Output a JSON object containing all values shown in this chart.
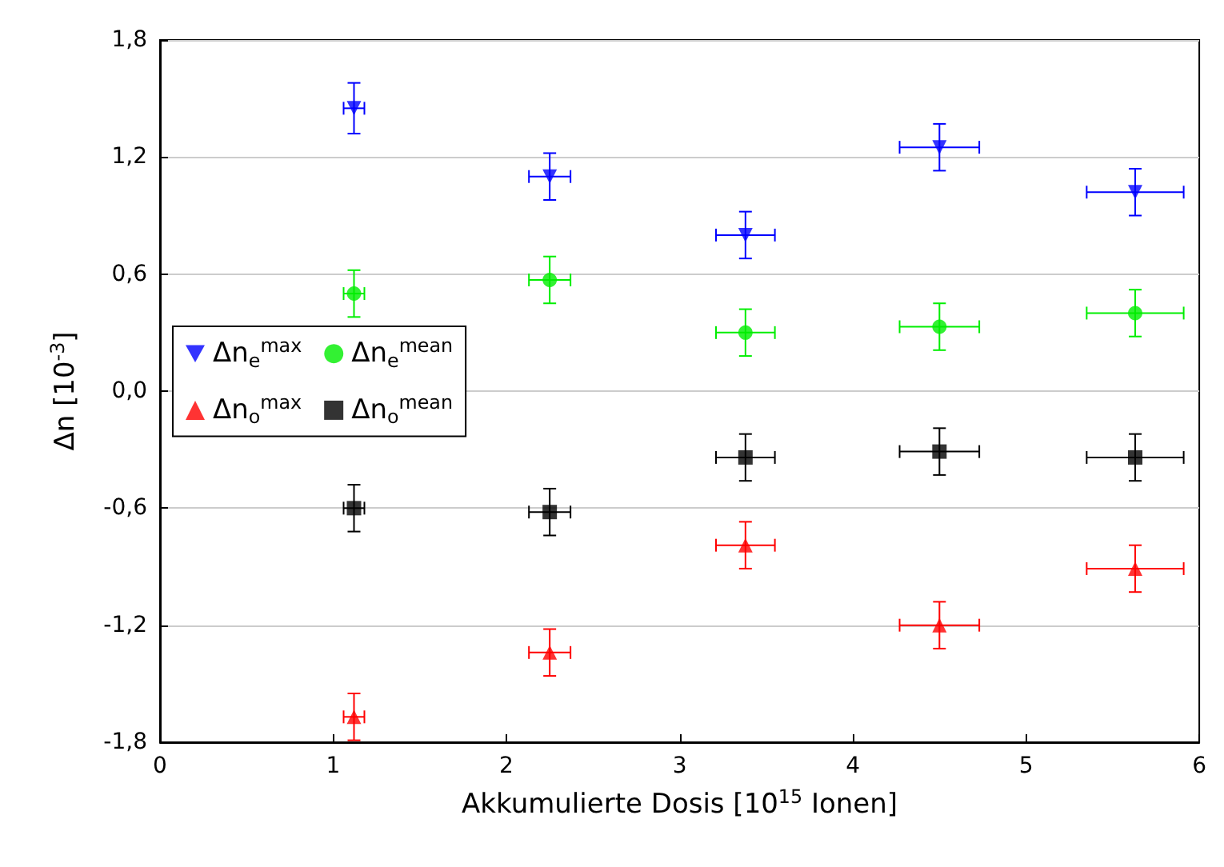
{
  "chart_data": {
    "type": "scatter",
    "xlabel": "Akkumulierte Dosis [10$^{15}$ Ionen]",
    "ylabel": "Δn [10$^{-3}$]",
    "x": [
      1.12,
      2.25,
      3.38,
      4.5,
      5.63
    ],
    "series": [
      {
        "name": "Δn$_{e}$$^{max}$",
        "color": "#0000ff",
        "marker": "triangle-down",
        "values": [
          1.45,
          1.1,
          0.8,
          1.25,
          1.02
        ],
        "errors": [
          0.13,
          0.12,
          0.12,
          0.12,
          0.12
        ],
        "xerrors": [
          0.06,
          0.12,
          0.17,
          0.23,
          0.28
        ]
      },
      {
        "name": "Δn$_{e}$$^{mean}$",
        "color": "#00ee00",
        "marker": "circle",
        "values": [
          0.5,
          0.57,
          0.3,
          0.33,
          0.4
        ],
        "errors": [
          0.12,
          0.12,
          0.12,
          0.12,
          0.12
        ],
        "xerrors": [
          0.06,
          0.12,
          0.17,
          0.23,
          0.28
        ]
      },
      {
        "name": "Δn$_{o}$$^{max}$",
        "color": "#ff0000",
        "marker": "triangle",
        "values": [
          -1.67,
          -1.34,
          -0.79,
          -1.2,
          -0.91
        ],
        "errors": [
          0.12,
          0.12,
          0.12,
          0.12,
          0.12
        ],
        "xerrors": [
          0.06,
          0.12,
          0.17,
          0.23,
          0.28
        ]
      },
      {
        "name": "Δn$_{o}$$^{mean}$",
        "color": "#000000",
        "marker": "square",
        "values": [
          -0.6,
          -0.62,
          -0.34,
          -0.31,
          -0.34
        ],
        "errors": [
          0.12,
          0.12,
          0.12,
          0.12,
          0.12
        ],
        "xerrors": [
          0.06,
          0.12,
          0.17,
          0.23,
          0.28
        ]
      }
    ],
    "xlim": [
      0,
      6
    ],
    "xticks": [
      0,
      1,
      2,
      3,
      4,
      5,
      6
    ],
    "ylim": [
      -1.8,
      1.8
    ],
    "yticks": [
      {
        "value": -1.8,
        "label": "-1,8"
      },
      {
        "value": -1.2,
        "label": "-1,2"
      },
      {
        "value": -0.6,
        "label": "-0,6"
      },
      {
        "value": 0,
        "label": "0,0"
      },
      {
        "value": 0.6,
        "label": "0,6"
      },
      {
        "value": 1.2,
        "label": "1,2"
      },
      {
        "value": 1.8,
        "label": "1,8"
      }
    ],
    "grid": "y",
    "legend": "left"
  }
}
